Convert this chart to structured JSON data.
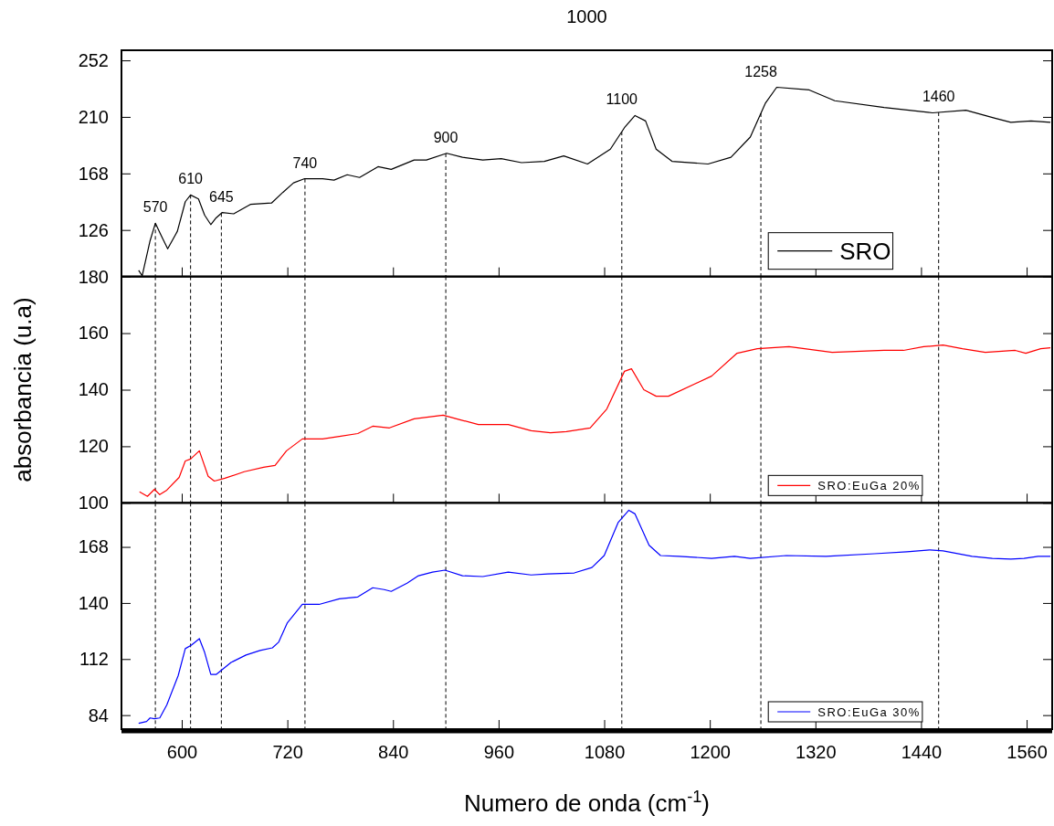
{
  "chart_data": [
    {
      "type": "line",
      "title": "1000",
      "tick_labels": "y",
      "xlim": [
        531.5,
        1589
      ],
      "xticks": [
        600,
        720,
        840,
        960,
        1080,
        1200,
        1320,
        1440,
        1560
      ],
      "ylim": [
        91.4,
        259.5
      ],
      "yticks": [
        126,
        168,
        210,
        252
      ],
      "legend": "bottom right",
      "grid": false,
      "line_style": "solid",
      "marker": "none",
      "series": [
        {
          "name": "SRO",
          "color": "#000000",
          "x": [
            551,
            555,
            564,
            570,
            578,
            584,
            595,
            604,
            610,
            619,
            626,
            633,
            639,
            646,
            659,
            678,
            702,
            715,
            727,
            739,
            760,
            773,
            788,
            802,
            823,
            838,
            864,
            878,
            901,
            919,
            942,
            963,
            986,
            1012,
            1034,
            1061,
            1087,
            1103,
            1115,
            1127,
            1139,
            1157,
            1198,
            1224,
            1246,
            1263,
            1276,
            1313,
            1342,
            1398,
            1453,
            1491,
            1524,
            1542,
            1565,
            1587
          ],
          "values": [
            96,
            92,
            118,
            131,
            120,
            112,
            125,
            147,
            152,
            149,
            137,
            130,
            135,
            139,
            138,
            145,
            146,
            154,
            161,
            164,
            164,
            163,
            167,
            165,
            173,
            171,
            178,
            178,
            183,
            180,
            178,
            179,
            176,
            177,
            181,
            175,
            186,
            202,
            211,
            207,
            186,
            177,
            175,
            180,
            195,
            220,
            232,
            230,
            222,
            217,
            213,
            215,
            209,
            206,
            207,
            206
          ]
        }
      ],
      "ref_lines": [
        {
          "axis": "x",
          "value": 570,
          "label": "570",
          "color": "#000000",
          "line_style": "dashed"
        },
        {
          "axis": "x",
          "value": 610,
          "label": "610",
          "color": "#000000",
          "line_style": "dashed"
        },
        {
          "axis": "x",
          "value": 645,
          "label": "645",
          "color": "#000000",
          "line_style": "dashed"
        },
        {
          "axis": "x",
          "value": 740,
          "label": "740",
          "color": "#000000",
          "line_style": "dashed"
        },
        {
          "axis": "x",
          "value": 900,
          "label": "900",
          "color": "#000000",
          "line_style": "dashed"
        },
        {
          "axis": "x",
          "value": 1100,
          "label": "1100",
          "color": "#000000",
          "line_style": "dashed"
        },
        {
          "axis": "x",
          "value": 1258,
          "label": "1258",
          "color": "#000000",
          "line_style": "dashed"
        },
        {
          "axis": "x",
          "value": 1460,
          "label": "1460",
          "color": "#000000",
          "line_style": "dashed"
        }
      ]
    },
    {
      "type": "line",
      "tick_labels": "y",
      "ylabel": "absorbancia (u.a)",
      "xlim": [
        531.5,
        1589
      ],
      "xticks": [
        600,
        720,
        840,
        960,
        1080,
        1200,
        1320,
        1440,
        1560
      ],
      "ylim": [
        100,
        180
      ],
      "yticks": [
        100,
        120,
        140,
        160,
        180
      ],
      "legend": "bottom right",
      "grid": false,
      "line_style": "solid",
      "marker": "none",
      "series": [
        {
          "name": "SRO:EuGa 20%",
          "color": "#ff0000",
          "x": [
            552,
            561,
            569,
            575,
            583,
            597,
            604,
            610,
            620,
            630,
            637,
            649,
            671,
            693,
            706,
            719,
            737,
            760,
            779,
            800,
            817,
            836,
            864,
            897,
            916,
            937,
            971,
            997,
            1019,
            1037,
            1064,
            1083,
            1103,
            1111,
            1125,
            1139,
            1153,
            1202,
            1231,
            1254,
            1290,
            1339,
            1398,
            1420,
            1443,
            1465,
            1487,
            1513,
            1547,
            1559,
            1576,
            1587
          ],
          "values": [
            103.9,
            102.3,
            104.8,
            102.9,
            104.5,
            109,
            114.8,
            115.5,
            118.4,
            109.4,
            107.7,
            108.7,
            111,
            112.6,
            113.2,
            118.4,
            122.6,
            122.6,
            123.5,
            124.5,
            127.1,
            126.5,
            129.7,
            131,
            129.4,
            127.7,
            127.7,
            125.5,
            124.8,
            125.2,
            126.5,
            133.2,
            146.5,
            147.4,
            140,
            137.7,
            137.7,
            144.8,
            152.9,
            154.5,
            155.2,
            153.2,
            153.9,
            153.9,
            155.2,
            155.8,
            154.5,
            153.2,
            153.9,
            152.9,
            154.5,
            154.8
          ]
        }
      ],
      "ref_lines": [
        {
          "axis": "x",
          "value": 570,
          "color": "#000000",
          "line_style": "dashed"
        },
        {
          "axis": "x",
          "value": 610,
          "color": "#000000",
          "line_style": "dashed"
        },
        {
          "axis": "x",
          "value": 645,
          "color": "#000000",
          "line_style": "dashed"
        },
        {
          "axis": "x",
          "value": 740,
          "color": "#000000",
          "line_style": "dashed"
        },
        {
          "axis": "x",
          "value": 900,
          "color": "#000000",
          "line_style": "dashed"
        },
        {
          "axis": "x",
          "value": 1100,
          "color": "#000000",
          "line_style": "dashed"
        },
        {
          "axis": "x",
          "value": 1258,
          "color": "#000000",
          "line_style": "dashed"
        },
        {
          "axis": "x",
          "value": 1460,
          "color": "#000000",
          "line_style": "dashed"
        }
      ]
    },
    {
      "type": "line",
      "xlabel": "Numero de onda (cm$^{-1}$)",
      "xlim": [
        531.5,
        1589
      ],
      "xticks": [
        600,
        720,
        840,
        960,
        1080,
        1200,
        1320,
        1440,
        1560
      ],
      "ylim": [
        77,
        190
      ],
      "yticks": [
        84,
        112,
        140,
        168
      ],
      "legend": "bottom right",
      "grid": false,
      "line_style": "solid",
      "marker": "none",
      "series": [
        {
          "name": "SRO:EuGa 30%",
          "color": "#0000ff",
          "x": [
            551,
            560,
            564,
            569,
            575,
            583,
            596,
            604,
            611,
            620,
            626,
            633,
            639,
            656,
            673,
            689,
            703,
            710,
            720,
            737,
            756,
            779,
            800,
            817,
            830,
            838,
            856,
            869,
            885,
            899,
            919,
            942,
            971,
            997,
            1016,
            1046,
            1066,
            1080,
            1096,
            1108,
            1115,
            1131,
            1144,
            1165,
            1202,
            1228,
            1246,
            1287,
            1332,
            1387,
            1424,
            1450,
            1465,
            1498,
            1521,
            1542,
            1557,
            1573,
            1587
          ],
          "values": [
            79.9,
            80.8,
            82.6,
            82.2,
            82.6,
            89.1,
            103.8,
            117.2,
            119,
            122.2,
            115.3,
            104.3,
            104.3,
            110.3,
            114,
            116.3,
            117.6,
            120.4,
            130.1,
            139.3,
            139.3,
            142.1,
            143,
            147.6,
            146.7,
            145.8,
            149.9,
            153.6,
            155.4,
            156.4,
            153.6,
            153.2,
            155.4,
            154,
            154.5,
            155,
            157.7,
            163.7,
            180.3,
            186.3,
            184.5,
            168.8,
            163.7,
            163.3,
            162.3,
            163.3,
            162.3,
            163.7,
            163.3,
            164.6,
            165.6,
            166.5,
            166,
            163.3,
            162.3,
            161.9,
            162.3,
            163.3,
            163.3
          ]
        }
      ],
      "ref_lines": [
        {
          "axis": "x",
          "value": 570,
          "color": "#000000",
          "line_style": "dashed"
        },
        {
          "axis": "x",
          "value": 610,
          "color": "#000000",
          "line_style": "dashed"
        },
        {
          "axis": "x",
          "value": 645,
          "color": "#000000",
          "line_style": "dashed"
        },
        {
          "axis": "x",
          "value": 740,
          "color": "#000000",
          "line_style": "dashed"
        },
        {
          "axis": "x",
          "value": 900,
          "color": "#000000",
          "line_style": "dashed"
        },
        {
          "axis": "x",
          "value": 1100,
          "color": "#000000",
          "line_style": "dashed"
        },
        {
          "axis": "x",
          "value": 1258,
          "color": "#000000",
          "line_style": "dashed"
        },
        {
          "axis": "x",
          "value": 1460,
          "color": "#000000",
          "line_style": "dashed"
        }
      ]
    }
  ]
}
